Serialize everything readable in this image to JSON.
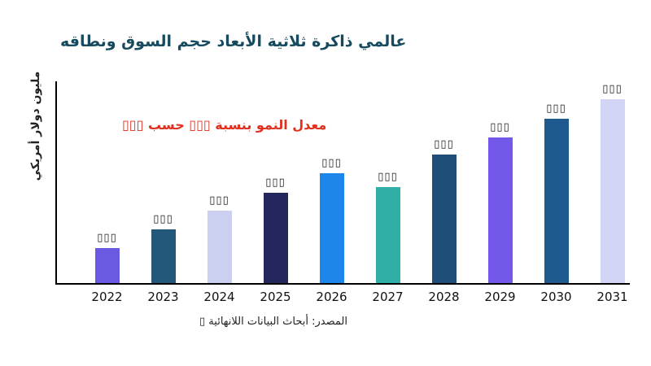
{
  "chart_data": {
    "type": "bar",
    "title": "عالمي ذاكرة ثلاثية الأبعاد حجم السوق ونطاقه",
    "ylabel": "مليون دولار أمريكي",
    "xlabel": "",
    "annotation": "معدل النمو بنسبة ▯▯▯ حسب ▯▯▯",
    "source": "المصدر: أبحاث البيانات اللانهائية ▯",
    "categories": [
      "2022",
      "2023",
      "2024",
      "2025",
      "2026",
      "2027",
      "2028",
      "2029",
      "2030",
      "2031"
    ],
    "values": [
      43,
      67,
      90,
      112,
      136,
      119,
      159,
      180,
      204,
      228
    ],
    "value_labels": [
      "▯▯▯",
      "▯▯▯",
      "▯▯▯",
      "▯▯▯",
      "▯▯▯",
      "▯▯▯",
      "▯▯▯",
      "▯▯▯",
      "▯▯▯",
      "▯▯▯"
    ],
    "ylim": [
      0,
      250
    ],
    "yticks": [],
    "grid": false,
    "legend": "none",
    "bar_colors": [
      "#6a5ae1",
      "#24587a",
      "#ccd0f0",
      "#23275c",
      "#1d86ea",
      "#2fafa5",
      "#1f4e79",
      "#7458ea",
      "#1e5a8e",
      "#d2d5f5"
    ],
    "colors": {
      "title": "#174a5f",
      "annotation": "#e0301e",
      "axis": "#000000",
      "background": "#ffffff"
    }
  }
}
